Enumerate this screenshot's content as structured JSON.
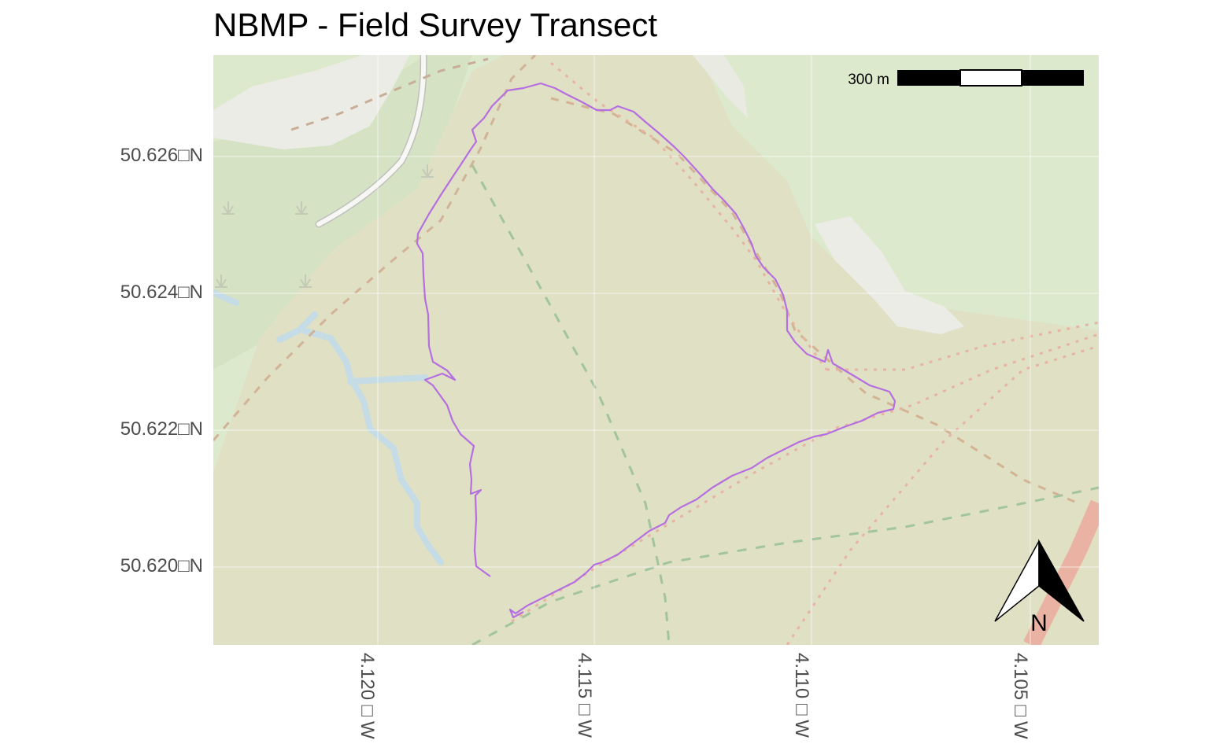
{
  "title": "NBMP - Field Survey Transect",
  "y_axis": {
    "labels": [
      "50.626□N",
      "50.624□N",
      "50.622□N",
      "50.620□N"
    ]
  },
  "x_axis": {
    "labels": [
      "4.120□W",
      "4.115□W",
      "4.110□W",
      "4.105□W"
    ]
  },
  "scale_bar": {
    "label": "300 m"
  },
  "north_arrow": {
    "label": "N"
  },
  "colors": {
    "panel_background": "#dfe8c8",
    "moorland_fill": "#e1e1c6",
    "track": "#b56fe0",
    "water": "#c7dde6",
    "clearing": "#ecece4",
    "footpath_orange": "#d7ad93",
    "footpath_green": "#9fc49f",
    "footpath_red": "#eab8a8",
    "road_red": "#efb3a4"
  },
  "icons": [
    "north-arrow-icon",
    "scale-bar-icon",
    "vegetation-symbol-icon"
  ]
}
